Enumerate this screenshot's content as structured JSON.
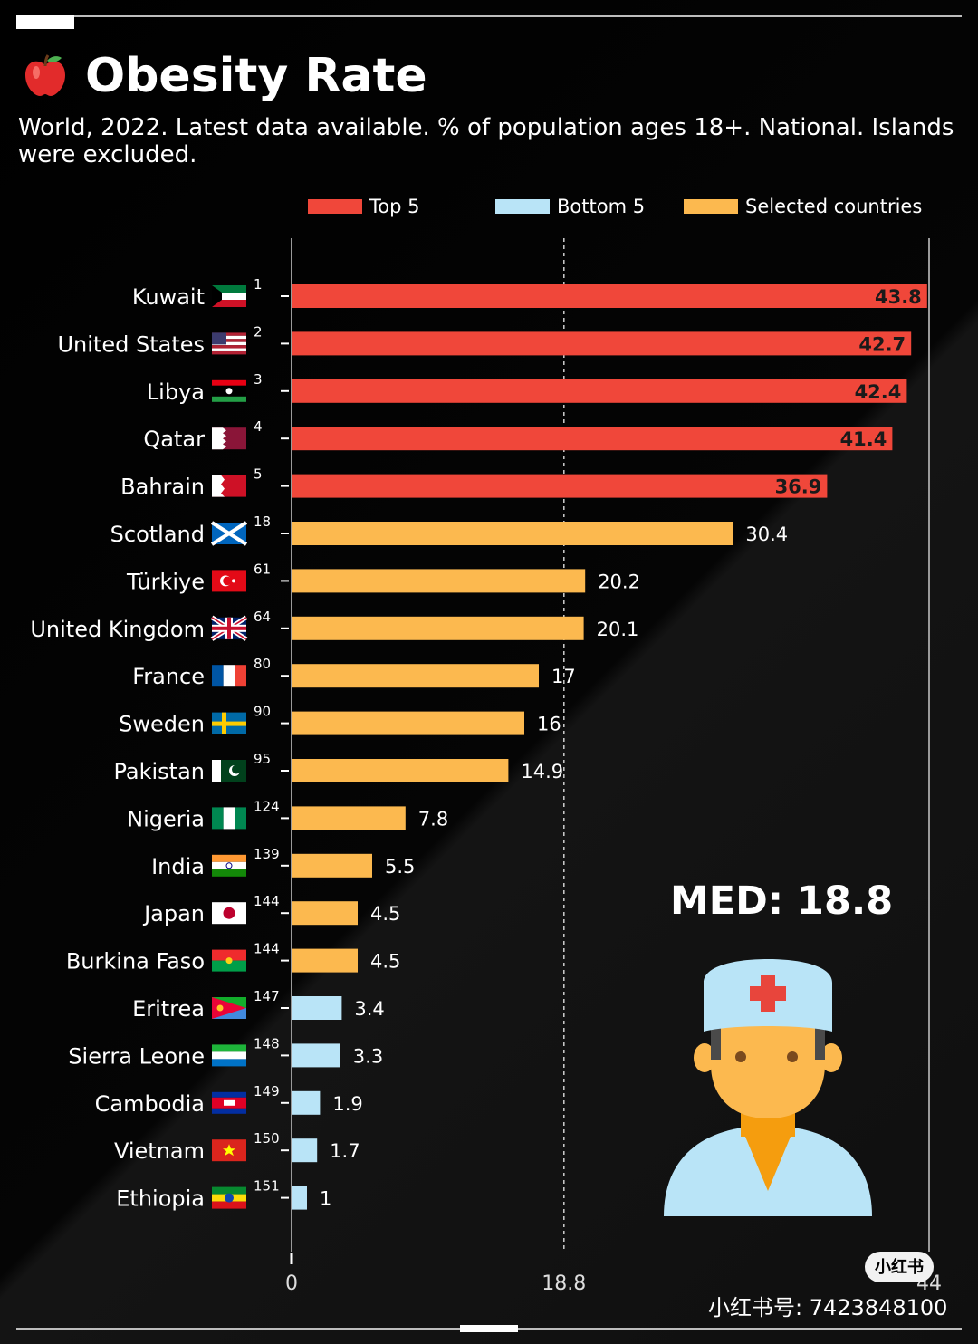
{
  "header": {
    "title": "Obesity Rate",
    "subtitle": "World, 2022. Latest data available. % of population ages 18+. National. Islands were excluded."
  },
  "chart_data": {
    "type": "bar",
    "orientation": "horizontal",
    "title": "Obesity Rate",
    "xlim": [
      0,
      44
    ],
    "x_ticks": [
      "0",
      "18.8",
      "44"
    ],
    "median": 18.8,
    "median_label": "18.8",
    "legend": [
      {
        "name": "Top 5",
        "color": "#f0473a"
      },
      {
        "name": "Bottom 5",
        "color": "#b9e4f7"
      },
      {
        "name": "Selected countries",
        "color": "#fcb94f"
      }
    ],
    "colors": {
      "top": "#f0473a",
      "bottom": "#b9e4f7",
      "selected": "#fcb94f"
    },
    "rows": [
      {
        "country": "Kuwait",
        "rank": "1",
        "value": 43.8,
        "label": "43.8",
        "group": "top",
        "flag": "kuwait-flag"
      },
      {
        "country": "United States",
        "rank": "2",
        "value": 42.7,
        "label": "42.7",
        "group": "top",
        "flag": "usa-flag"
      },
      {
        "country": "Libya",
        "rank": "3",
        "value": 42.4,
        "label": "42.4",
        "group": "top",
        "flag": "libya-flag"
      },
      {
        "country": "Qatar",
        "rank": "4",
        "value": 41.4,
        "label": "41.4",
        "group": "top",
        "flag": "qatar-flag"
      },
      {
        "country": "Bahrain",
        "rank": "5",
        "value": 36.9,
        "label": "36.9",
        "group": "top",
        "flag": "bahrain-flag"
      },
      {
        "country": "Scotland",
        "rank": "18",
        "value": 30.4,
        "label": "30.4",
        "group": "selected",
        "flag": "scotland-flag"
      },
      {
        "country": "Türkiye",
        "rank": "61",
        "value": 20.2,
        "label": "20.2",
        "group": "selected",
        "flag": "turkiye-flag"
      },
      {
        "country": "United Kingdom",
        "rank": "64",
        "value": 20.1,
        "label": "20.1",
        "group": "selected",
        "flag": "uk-flag"
      },
      {
        "country": "France",
        "rank": "80",
        "value": 17,
        "label": "17",
        "group": "selected",
        "flag": "france-flag"
      },
      {
        "country": "Sweden",
        "rank": "90",
        "value": 16,
        "label": "16",
        "group": "selected",
        "flag": "sweden-flag"
      },
      {
        "country": "Pakistan",
        "rank": "95",
        "value": 14.9,
        "label": "14.9",
        "group": "selected",
        "flag": "pakistan-flag"
      },
      {
        "country": "Nigeria",
        "rank": "124",
        "value": 7.8,
        "label": "7.8",
        "group": "selected",
        "flag": "nigeria-flag"
      },
      {
        "country": "India",
        "rank": "139",
        "value": 5.5,
        "label": "5.5",
        "group": "selected",
        "flag": "india-flag"
      },
      {
        "country": "Japan",
        "rank": "144",
        "value": 4.5,
        "label": "4.5",
        "group": "selected",
        "flag": "japan-flag"
      },
      {
        "country": "Burkina Faso",
        "rank": "144",
        "value": 4.5,
        "label": "4.5",
        "group": "selected",
        "flag": "burkina-faso-flag"
      },
      {
        "country": "Eritrea",
        "rank": "147",
        "value": 3.4,
        "label": "3.4",
        "group": "bottom",
        "flag": "eritrea-flag"
      },
      {
        "country": "Sierra Leone",
        "rank": "148",
        "value": 3.3,
        "label": "3.3",
        "group": "bottom",
        "flag": "sierra-leone-flag"
      },
      {
        "country": "Cambodia",
        "rank": "149",
        "value": 1.9,
        "label": "1.9",
        "group": "bottom",
        "flag": "cambodia-flag"
      },
      {
        "country": "Vietnam",
        "rank": "150",
        "value": 1.7,
        "label": "1.7",
        "group": "bottom",
        "flag": "vietnam-flag"
      },
      {
        "country": "Ethiopia",
        "rank": "151",
        "value": 1,
        "label": "1",
        "group": "bottom",
        "flag": "ethiopia-flag"
      }
    ]
  },
  "annotation": {
    "median_text": "MED: 18.8"
  },
  "footer": {
    "badge": "小红书",
    "watermark": "小红书号: 7423848100"
  },
  "icons": {
    "title_icon": "apple-icon",
    "illustration": "doctor-icon"
  }
}
